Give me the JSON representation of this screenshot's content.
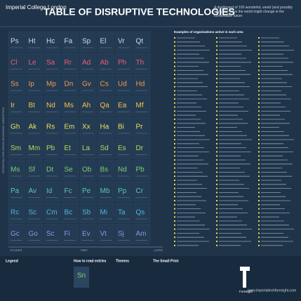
{
  "header": {
    "college": "Imperial College London",
    "title": "TABLE OF DISRUPTIVE TECHNOLOGIES",
    "subtitle": "A dashboard of 100 wonderful, weird (and possibly worrying) ways the world might change in the foreseeable future"
  },
  "axes": {
    "y_label": "POTENTIAL FOR SOCIO-ECONOMIC DISRUPTION",
    "x_start": "SOONER",
    "x_mid": "TIME*",
    "x_end": "LATER"
  },
  "elements": [
    [
      "Ps",
      "Ht",
      "Hc",
      "Fa",
      "Sp",
      "El",
      "Vr",
      "Qt"
    ],
    [
      "Cl",
      "Le",
      "Sa",
      "Rr",
      "Ad",
      "Ab",
      "Ph",
      "Th"
    ],
    [
      "Ss",
      "Ip",
      "Mp",
      "Dn",
      "Gv",
      "Cs",
      "Ud",
      "Hd"
    ],
    [
      "Ir",
      "Bt",
      "Nd",
      "Ms",
      "Ah",
      "Qa",
      "Ea",
      "Mf"
    ],
    [
      "Gh",
      "Ak",
      "Rs",
      "Em",
      "Xx",
      "Ha",
      "Bi",
      "Pr"
    ],
    [
      "Sm",
      "Mm",
      "Pb",
      "Et",
      "La",
      "Sd",
      "Es",
      "Dr"
    ],
    [
      "Ms",
      "Sf",
      "Dt",
      "Se",
      "Ob",
      "Bs",
      "Nd",
      "Pb"
    ],
    [
      "Pa",
      "Av",
      "Id",
      "Fc",
      "Pe",
      "Mb",
      "Pp",
      "Cr"
    ],
    [
      "Rc",
      "Sc",
      "Cm",
      "Bc",
      "Sb",
      "Mi",
      "Ta",
      "Qs"
    ],
    [
      "Gc",
      "Go",
      "Sc",
      "Fi",
      "Ev",
      "Vt",
      "Sj",
      "Am"
    ]
  ],
  "colors": [
    "#d4dde4",
    "#ef5a7a",
    "#f39a4a",
    "#f6c548",
    "#e9e25a",
    "#b8d85a",
    "#7fd06f",
    "#5cc7a8",
    "#4fb7d8",
    "#9a8fe0"
  ],
  "list_header": "Examples of organisations active in each area",
  "footer": {
    "legend": "Legend",
    "how_to_read": "How to read entries",
    "themes": "Themes",
    "small_print": "The Small Print",
    "logo": "Foresight",
    "url": "www.imperialtechforesight.com",
    "sample": "Sn"
  }
}
